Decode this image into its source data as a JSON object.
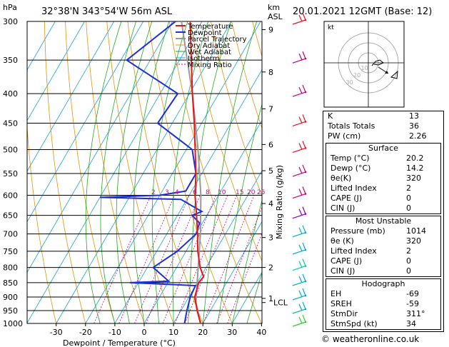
{
  "header": {
    "hpa_label": "hPa",
    "location": "32°38'N  343°54'W  56m  ASL",
    "km_label": "km",
    "asl_label": "ASL",
    "date": "20.01.2021  12GMT  (Base: 12)"
  },
  "chart_data": {
    "type": "skewt",
    "pressure_levels": [
      300,
      350,
      400,
      450,
      500,
      550,
      600,
      650,
      700,
      750,
      800,
      850,
      900,
      950,
      1000
    ],
    "temperature_ticks": [
      -30,
      -20,
      -10,
      0,
      10,
      20,
      30,
      40
    ],
    "xlabel": "Dewpoint / Temperature (°C)",
    "ylabel_right": "Mixing Ratio (g/kg)",
    "height_km": [
      {
        "km": "9",
        "p": 310
      },
      {
        "km": "8",
        "p": 367
      },
      {
        "km": "7",
        "p": 425
      },
      {
        "km": "6",
        "p": 490
      },
      {
        "km": "5",
        "p": 544
      },
      {
        "km": "4",
        "p": 620
      },
      {
        "km": "3",
        "p": 710
      },
      {
        "km": "2",
        "p": 800
      },
      {
        "km": "1",
        "p": 905
      },
      {
        "km": "LCL",
        "p": 920
      }
    ],
    "mixing_ratio_labels": [
      "1",
      "2",
      "3",
      "4",
      "6",
      "8",
      "10",
      "15",
      "20",
      "25"
    ],
    "temperature_profile": [
      [
        1014,
        20.2
      ],
      [
        950,
        15.5
      ],
      [
        900,
        12.0
      ],
      [
        850,
        10.5
      ],
      [
        830,
        11.0
      ],
      [
        800,
        8.0
      ],
      [
        750,
        4.0
      ],
      [
        700,
        0.5
      ],
      [
        650,
        -3.5
      ],
      [
        600,
        -8.0
      ],
      [
        550,
        -12.0
      ],
      [
        500,
        -17.0
      ],
      [
        450,
        -22.5
      ],
      [
        400,
        -29.0
      ],
      [
        350,
        -36.0
      ],
      [
        300,
        -44.0
      ]
    ],
    "dewpoint_profile": [
      [
        1014,
        14.2
      ],
      [
        950,
        12.0
      ],
      [
        900,
        10.5
      ],
      [
        860,
        10.0
      ],
      [
        850,
        -13.0
      ],
      [
        845,
        0.0
      ],
      [
        800,
        -8.0
      ],
      [
        750,
        -3.0
      ],
      [
        700,
        0.0
      ],
      [
        670,
        -1.0
      ],
      [
        650,
        -5.0
      ],
      [
        640,
        -2.5
      ],
      [
        610,
        -12.0
      ],
      [
        605,
        -40.0
      ],
      [
        600,
        -20.0
      ],
      [
        590,
        -12.0
      ],
      [
        550,
        -12.0
      ],
      [
        500,
        -18.0
      ],
      [
        450,
        -35.0
      ],
      [
        400,
        -34.0
      ],
      [
        350,
        -58.0
      ],
      [
        300,
        -49.0
      ]
    ],
    "parcel_profile": [
      [
        1014,
        20.2
      ],
      [
        920,
        13.5
      ],
      [
        850,
        10.0
      ],
      [
        700,
        1.5
      ],
      [
        600,
        -6.0
      ],
      [
        500,
        -16.0
      ],
      [
        400,
        -29.0
      ],
      [
        300,
        -47.0
      ]
    ],
    "legend": [
      "Temperature",
      "Dewpoint",
      "Parcel Trajectory",
      "Dry Adiabat",
      "Wet Adiabat",
      "Isotherm",
      "Mixing Ratio"
    ],
    "colors": {
      "temperature": "#e8141a",
      "dewpoint": "#1c2fd8",
      "parcel": "#999999",
      "dry_adiabat": "#e8900a",
      "wet_adiabat": "#22aa22",
      "isotherm": "#1aa0e0",
      "mixing_ratio": "#d0008c"
    }
  },
  "hodograph": {
    "label": "kt",
    "ring_labels": [
      "10",
      "20",
      "30"
    ]
  },
  "indices": {
    "top": [
      {
        "label": "K",
        "value": "13"
      },
      {
        "label": "Totals Totals",
        "value": "36"
      },
      {
        "label": "PW (cm)",
        "value": "2.26"
      }
    ],
    "surface": {
      "title": "Surface",
      "rows": [
        {
          "label": "Temp (°C)",
          "value": "20.2"
        },
        {
          "label": "Dewp (°C)",
          "value": "14.2"
        },
        {
          "label": "θe(K)",
          "value": "320"
        },
        {
          "label": "Lifted Index",
          "value": "2"
        },
        {
          "label": "CAPE (J)",
          "value": "0"
        },
        {
          "label": "CIN (J)",
          "value": "0"
        }
      ]
    },
    "unstable": {
      "title": "Most Unstable",
      "rows": [
        {
          "label": "Pressure (mb)",
          "value": "1014"
        },
        {
          "label": "θe (K)",
          "value": "320"
        },
        {
          "label": "Lifted Index",
          "value": "2"
        },
        {
          "label": "CAPE (J)",
          "value": "0"
        },
        {
          "label": "CIN (J)",
          "value": "0"
        }
      ]
    },
    "hodo": {
      "title": "Hodograph",
      "rows": [
        {
          "label": "EH",
          "value": "-69"
        },
        {
          "label": "SREH",
          "value": "-59"
        },
        {
          "label": "StmDir",
          "value": "311°"
        },
        {
          "label": "StmSpd (kt)",
          "value": "34"
        }
      ]
    }
  },
  "footer": "© weatheronline.co.uk",
  "wind_barbs": [
    {
      "p": 300,
      "color": "#e8141a"
    },
    {
      "p": 350,
      "color": "#c0007c"
    },
    {
      "p": 400,
      "color": "#c0007c"
    },
    {
      "p": 450,
      "color": "#e8141a"
    },
    {
      "p": 500,
      "color": "#e8141a"
    },
    {
      "p": 550,
      "color": "#c0007c"
    },
    {
      "p": 600,
      "color": "#c0007c"
    },
    {
      "p": 650,
      "color": "#8800cc"
    },
    {
      "p": 700,
      "color": "#00aacc"
    },
    {
      "p": 750,
      "color": "#00aacc"
    },
    {
      "p": 800,
      "color": "#00ccaa"
    },
    {
      "p": 850,
      "color": "#00aacc"
    },
    {
      "p": 900,
      "color": "#00aacc"
    },
    {
      "p": 950,
      "color": "#00aacc"
    },
    {
      "p": 1000,
      "color": "#33cc33"
    }
  ]
}
